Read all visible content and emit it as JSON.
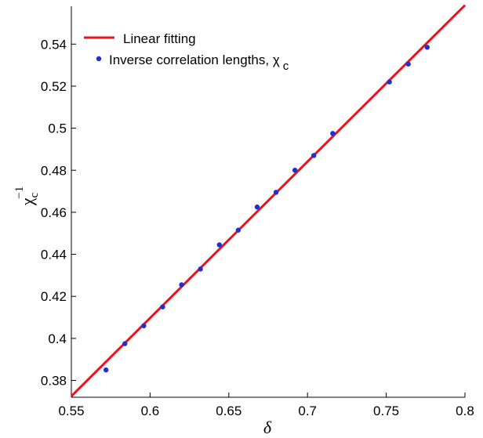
{
  "chart_data": {
    "type": "scatter",
    "xlabel": "δ",
    "ylabel": {
      "base": "χ",
      "subscript": "c",
      "superscript": "−1"
    },
    "xlim": [
      0.55,
      0.8
    ],
    "ylim": [
      0.372,
      0.558
    ],
    "xticks": [
      0.55,
      0.6,
      0.65,
      0.7,
      0.75,
      0.8
    ],
    "xtick_labels": [
      "0.55",
      "0.6",
      "0.65",
      "0.7",
      "0.75",
      "0.8"
    ],
    "yticks": [
      0.38,
      0.4,
      0.42,
      0.44,
      0.46,
      0.48,
      0.5,
      0.52,
      0.54
    ],
    "ytick_labels": [
      "0.38",
      "0.4",
      "0.42",
      "0.44",
      "0.46",
      "0.48",
      "0.5",
      "0.52",
      "0.54"
    ],
    "grid": false,
    "legend_position": "top-left",
    "series": [
      {
        "name": "Linear fitting",
        "kind": "line",
        "color": "#e8141c",
        "x": [
          0.55,
          0.8
        ],
        "y": [
          0.3725,
          0.5585
        ]
      },
      {
        "name": "Inverse correlation lengths, χ",
        "name_subscript": "c",
        "kind": "scatter",
        "color": "#1f2fd6",
        "x": [
          0.572,
          0.584,
          0.596,
          0.608,
          0.62,
          0.632,
          0.644,
          0.656,
          0.668,
          0.68,
          0.692,
          0.704,
          0.716,
          0.752,
          0.764,
          0.776
        ],
        "y": [
          0.385,
          0.3975,
          0.406,
          0.415,
          0.4255,
          0.433,
          0.4445,
          0.4515,
          0.4625,
          0.4695,
          0.48,
          0.487,
          0.4975,
          0.522,
          0.5305,
          0.5385
        ]
      }
    ]
  }
}
